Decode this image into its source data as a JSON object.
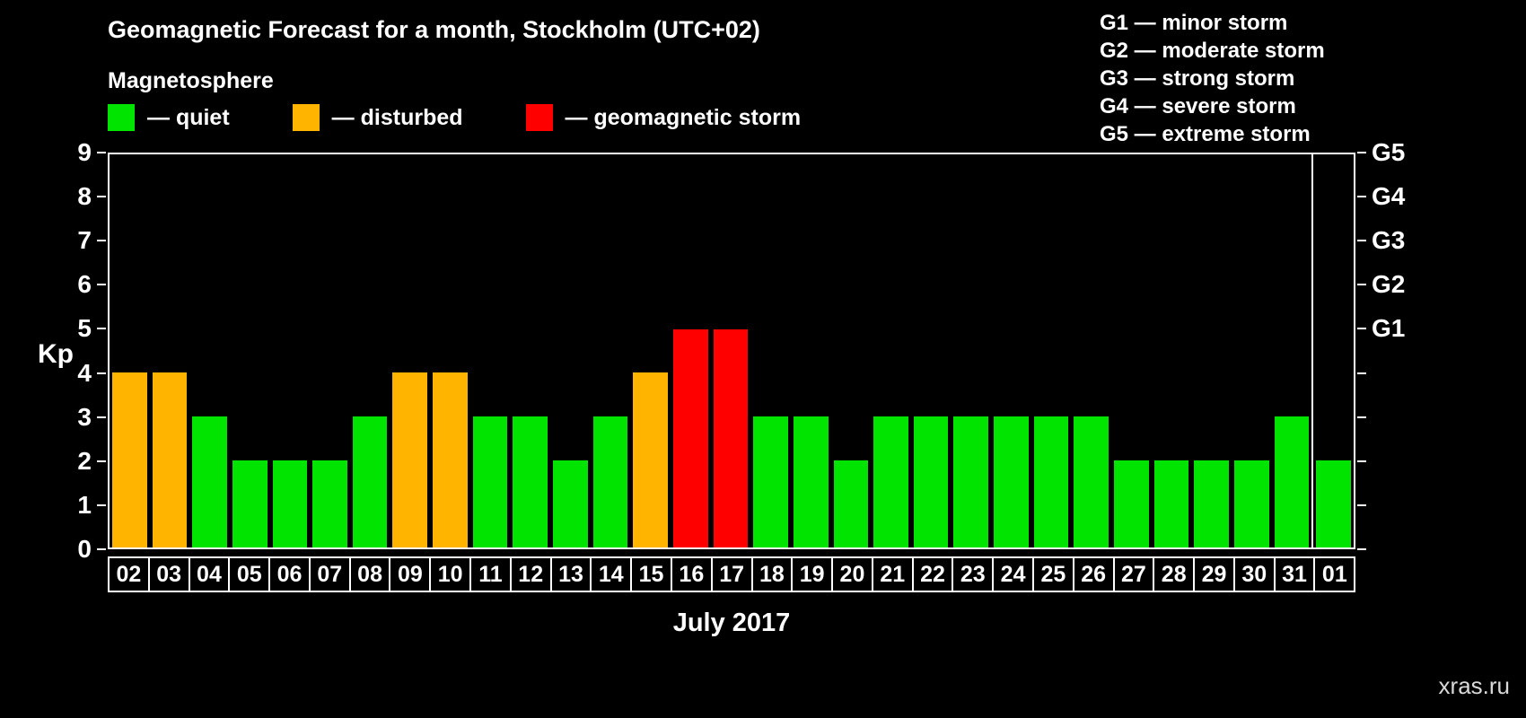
{
  "title": "Geomagnetic Forecast for a month, Stockholm (UTC+02)",
  "legend": {
    "heading": "Magnetosphere",
    "items": [
      {
        "key": "quiet",
        "label": "— quiet",
        "color": "#00e400"
      },
      {
        "key": "disturbed",
        "label": "— disturbed",
        "color": "#ffb400"
      },
      {
        "key": "storm",
        "label": "— geomagnetic storm",
        "color": "#ff0000"
      }
    ]
  },
  "g_scale_legend": [
    "G1 — minor storm",
    "G2 — moderate storm",
    "G3 — strong storm",
    "G4 — severe storm",
    "G5 — extreme storm"
  ],
  "watermark": "xras.ru",
  "chart_data": {
    "type": "bar",
    "title": "Geomagnetic Forecast for a month, Stockholm (UTC+02)",
    "xlabel": "July 2017",
    "ylabel": "Kp",
    "ylim": [
      0,
      9
    ],
    "yticks": [
      0,
      1,
      2,
      3,
      4,
      5,
      6,
      7,
      8,
      9
    ],
    "right_axis_labels": [
      {
        "value": 5,
        "label": "G1"
      },
      {
        "value": 6,
        "label": "G2"
      },
      {
        "value": 7,
        "label": "G3"
      },
      {
        "value": 8,
        "label": "G4"
      },
      {
        "value": 9,
        "label": "G5"
      }
    ],
    "categories": [
      "02",
      "03",
      "04",
      "05",
      "06",
      "07",
      "08",
      "09",
      "10",
      "11",
      "12",
      "13",
      "14",
      "15",
      "16",
      "17",
      "18",
      "19",
      "20",
      "21",
      "22",
      "23",
      "24",
      "25",
      "26",
      "27",
      "28",
      "29",
      "30",
      "31",
      "01"
    ],
    "values": [
      4,
      4,
      3,
      2,
      2,
      2,
      3,
      4,
      4,
      3,
      3,
      2,
      3,
      4,
      5,
      5,
      3,
      3,
      2,
      3,
      3,
      3,
      3,
      3,
      3,
      2,
      2,
      2,
      2,
      3,
      2
    ],
    "statuses": [
      "disturbed",
      "disturbed",
      "quiet",
      "quiet",
      "quiet",
      "quiet",
      "quiet",
      "disturbed",
      "disturbed",
      "quiet",
      "quiet",
      "quiet",
      "quiet",
      "disturbed",
      "storm",
      "storm",
      "quiet",
      "quiet",
      "quiet",
      "quiet",
      "quiet",
      "quiet",
      "quiet",
      "quiet",
      "quiet",
      "quiet",
      "quiet",
      "quiet",
      "quiet",
      "quiet",
      "quiet"
    ],
    "colors": {
      "quiet": "#00e400",
      "disturbed": "#ffb400",
      "storm": "#ff0000"
    },
    "separator_index": 30,
    "grid": false,
    "legend_position": "top"
  }
}
